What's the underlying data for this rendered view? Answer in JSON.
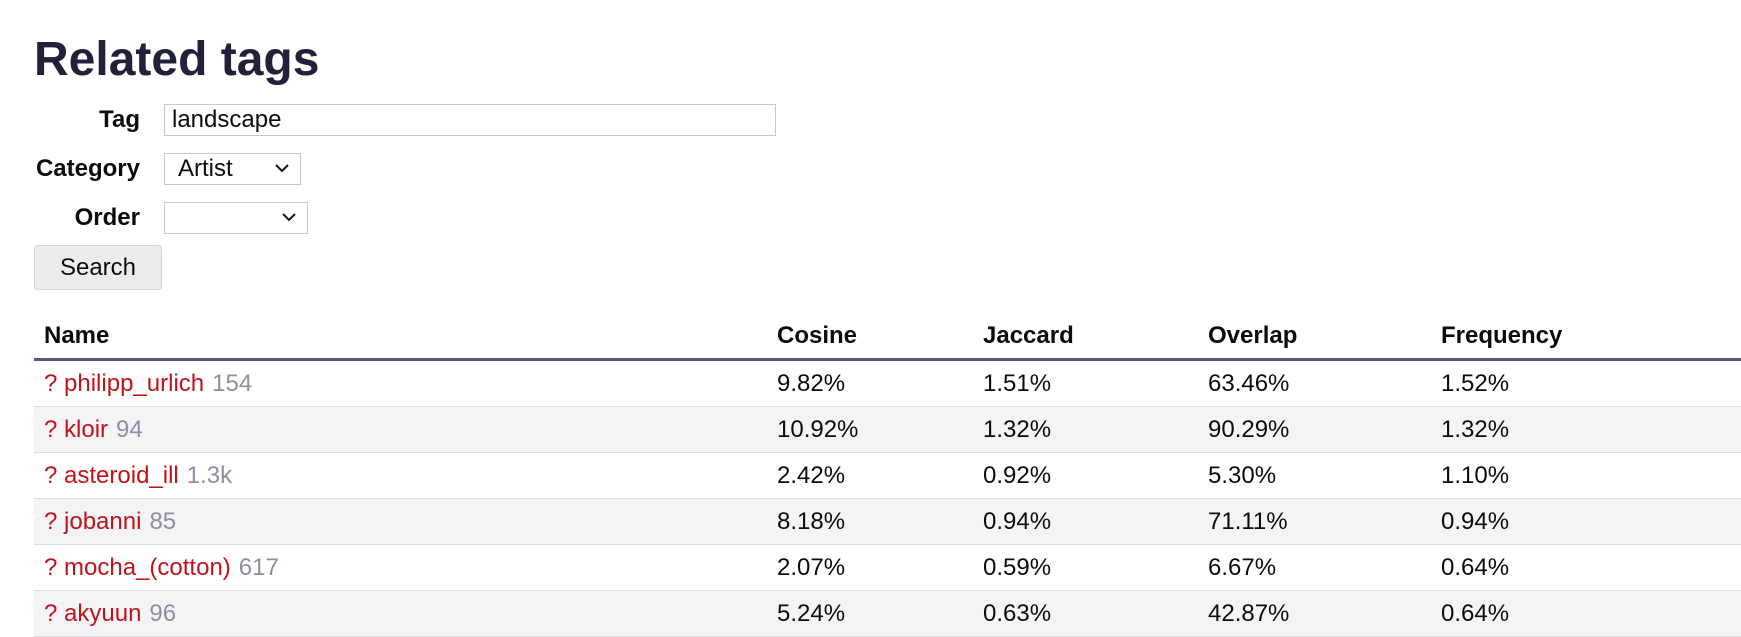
{
  "page": {
    "title": "Related tags"
  },
  "form": {
    "tag_label": "Tag",
    "tag_value": "landscape",
    "category_label": "Category",
    "category_value": "Artist",
    "order_label": "Order",
    "order_value": "",
    "search_label": "Search"
  },
  "table": {
    "headers": [
      "Name",
      "Cosine",
      "Jaccard",
      "Overlap",
      "Frequency"
    ],
    "rows": [
      {
        "prefix": "?",
        "name": "philipp_urlich",
        "count": "154",
        "cosine": "9.82%",
        "jaccard": "1.51%",
        "overlap": "63.46%",
        "frequency": "1.52%"
      },
      {
        "prefix": "?",
        "name": "kloir",
        "count": "94",
        "cosine": "10.92%",
        "jaccard": "1.32%",
        "overlap": "90.29%",
        "frequency": "1.32%"
      },
      {
        "prefix": "?",
        "name": "asteroid_ill",
        "count": "1.3k",
        "cosine": "2.42%",
        "jaccard": "0.92%",
        "overlap": "5.30%",
        "frequency": "1.10%"
      },
      {
        "prefix": "?",
        "name": "jobanni",
        "count": "85",
        "cosine": "8.18%",
        "jaccard": "0.94%",
        "overlap": "71.11%",
        "frequency": "0.94%"
      },
      {
        "prefix": "?",
        "name": "mocha_(cotton)",
        "count": "617",
        "cosine": "2.07%",
        "jaccard": "0.59%",
        "overlap": "6.67%",
        "frequency": "0.64%"
      },
      {
        "prefix": "?",
        "name": "akyuun",
        "count": "96",
        "cosine": "5.24%",
        "jaccard": "0.63%",
        "overlap": "42.87%",
        "frequency": "0.64%"
      }
    ]
  },
  "colors": {
    "title": "#21213a",
    "tag_link": "#c0141a",
    "count": "#8e8ea0",
    "header_rule": "#5a5a78",
    "alt_row": "#f4f4f7"
  },
  "icons": {
    "select_arrow": "chevron-down-icon"
  }
}
